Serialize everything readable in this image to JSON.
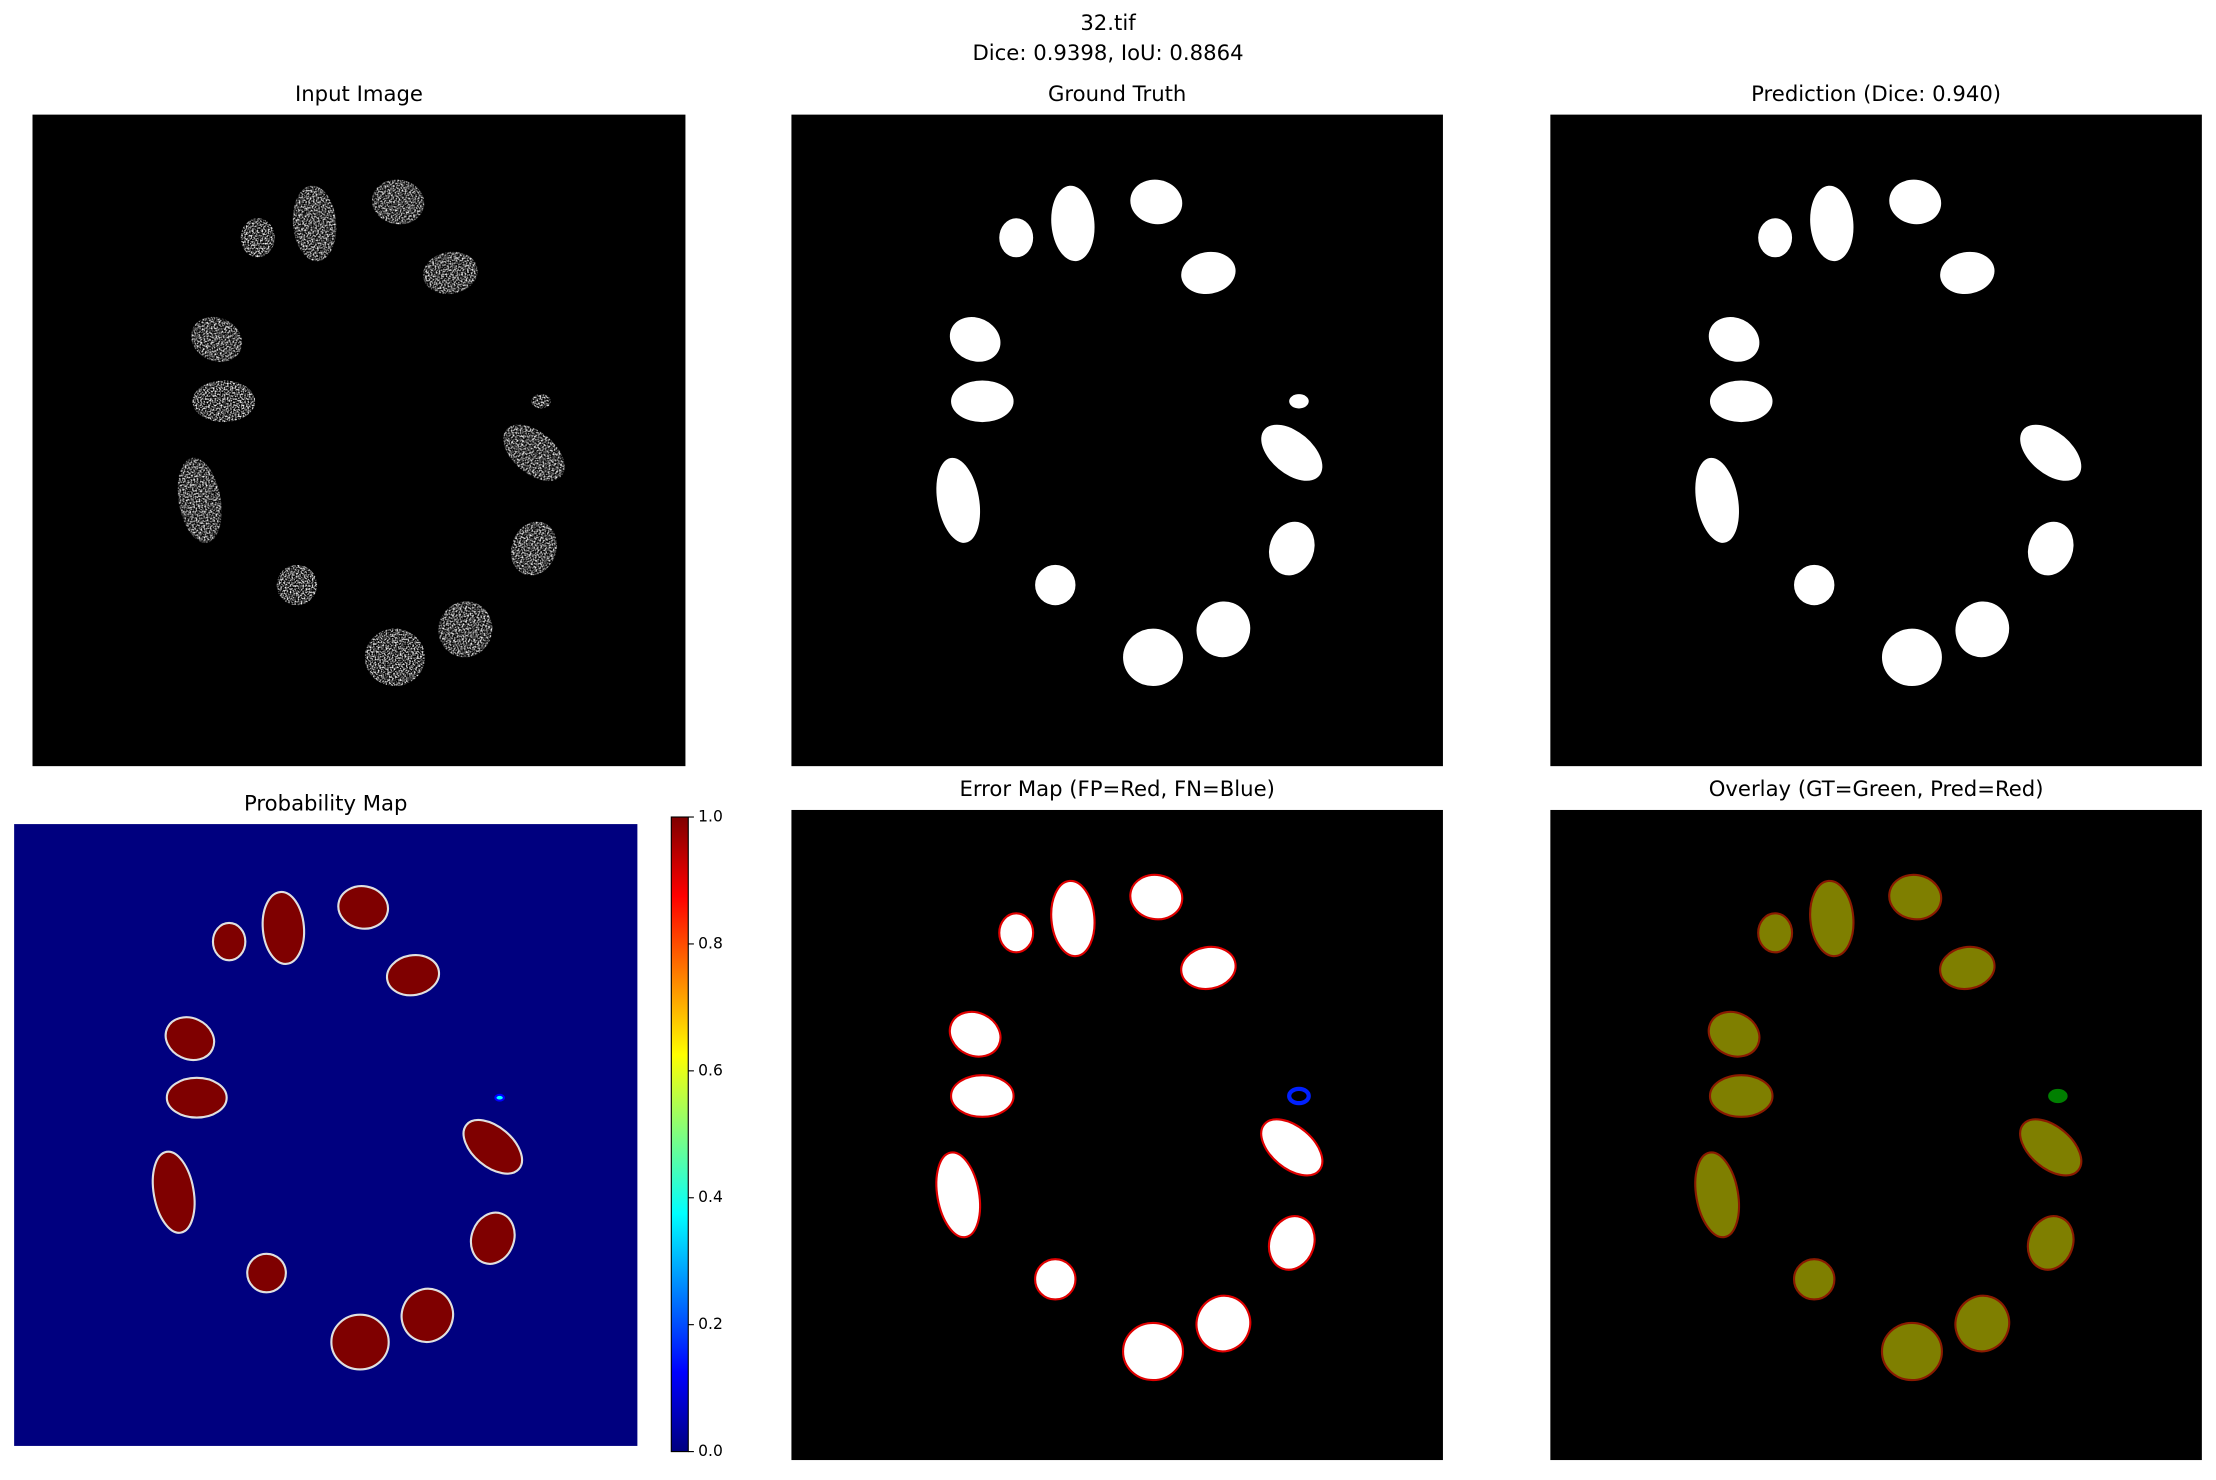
{
  "header": {
    "title": "32.tif",
    "subtitle": "Dice: 0.9398, IoU: 0.8864"
  },
  "panels": [
    {
      "title": "Input Image"
    },
    {
      "title": "Ground Truth"
    },
    {
      "title": "Prediction (Dice: 0.940)"
    },
    {
      "title": "Probability Map"
    },
    {
      "title": "Error Map (FP=Red, FN=Blue)"
    },
    {
      "title": "Overlay (GT=Green, Pred=Red)"
    }
  ],
  "colorbar": {
    "lim": [
      0,
      1
    ],
    "ticks": [
      {
        "value": 0,
        "label": "0.0"
      },
      0.2,
      0.4,
      0.6,
      0.8,
      {
        "value": 1,
        "label": "1.0"
      }
    ]
  }
}
